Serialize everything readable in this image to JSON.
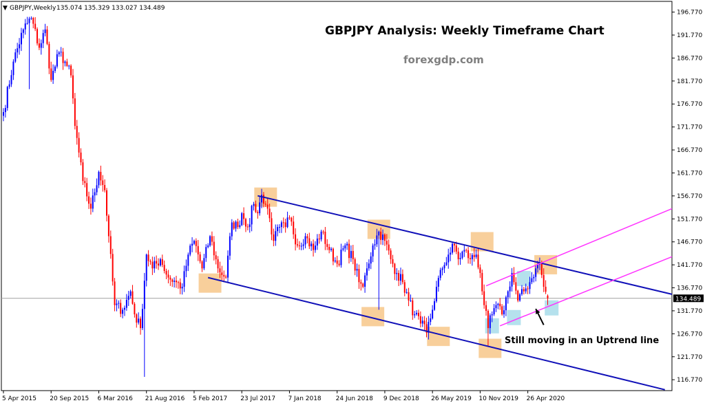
{
  "colors": {
    "background": "#ffffff",
    "frame": "#000000",
    "bull_candle": "#0000ff",
    "bear_candle": "#ff0000",
    "channel_line": "#1010b8",
    "uptrend_line": "#ff33ff",
    "price_line": "#a0a0a0",
    "price_box": "#000000",
    "orange_highlight": "#f7c78a",
    "blue_highlight": "#a8dcea"
  },
  "header": {
    "symbol_arrow": "▼",
    "symbol": "GBPJPY,Weekly",
    "ohlc": "135.074 135.329 133.027 134.489"
  },
  "title": "GBPJPY Analysis: Weekly Timeframe Chart",
  "watermark": "forexgdp.com",
  "annotation": "Still moving in an Uptrend line",
  "current_price_label": "134.489",
  "chart_data": {
    "type": "candlestick",
    "instrument": "GBPJPY",
    "timeframe": "Weekly",
    "last_bar": {
      "open": 135.074,
      "high": 135.329,
      "low": 133.027,
      "close": 134.489
    },
    "ylim": [
      114.4,
      199.1
    ],
    "y_ticks": [
      "196.770",
      "191.770",
      "186.770",
      "181.770",
      "176.770",
      "171.770",
      "166.770",
      "161.770",
      "156.770",
      "151.770",
      "146.770",
      "141.770",
      "136.770",
      "131.770",
      "126.770",
      "121.770",
      "116.770"
    ],
    "x_ticks": [
      "5 Apr 2015",
      "20 Sep 2015",
      "6 Mar 2016",
      "21 Aug 2016",
      "5 Feb 2017",
      "23 Jul 2017",
      "7 Jan 2018",
      "24 Jun 2018",
      "9 Dec 2018",
      "26 May 2019",
      "10 Nov 2019",
      "26 Apr 2020"
    ],
    "x_tick_weeks": [
      0,
      24,
      48,
      72,
      96,
      120,
      144,
      168,
      192,
      216,
      240,
      264
    ],
    "path": [
      [
        0,
        175
      ],
      [
        5,
        186
      ],
      [
        10,
        193
      ],
      [
        14,
        195.5
      ],
      [
        18,
        189
      ],
      [
        21,
        193
      ],
      [
        24,
        182
      ],
      [
        28,
        188
      ],
      [
        31,
        186
      ],
      [
        34,
        183
      ],
      [
        36,
        172
      ],
      [
        40,
        160
      ],
      [
        44,
        154
      ],
      [
        48,
        162
      ],
      [
        51,
        158
      ],
      [
        53,
        148
      ],
      [
        56,
        133
      ],
      [
        60,
        132
      ],
      [
        64,
        136
      ],
      [
        66,
        131
      ],
      [
        69,
        128
      ],
      [
        72,
        144
      ],
      [
        75,
        141
      ],
      [
        79,
        143
      ],
      [
        83,
        139
      ],
      [
        87,
        138
      ],
      [
        90,
        137
      ],
      [
        93,
        144
      ],
      [
        96,
        147
      ],
      [
        100,
        141
      ],
      [
        104,
        148
      ],
      [
        108,
        141
      ],
      [
        112,
        139
      ],
      [
        115,
        151
      ],
      [
        118,
        150
      ],
      [
        120,
        153
      ],
      [
        123,
        150
      ],
      [
        126,
        155
      ],
      [
        128,
        153
      ],
      [
        130,
        157
      ],
      [
        133,
        154
      ],
      [
        136,
        147
      ],
      [
        139,
        150
      ],
      [
        142,
        150
      ],
      [
        144,
        152
      ],
      [
        148,
        146
      ],
      [
        152,
        148
      ],
      [
        156,
        145
      ],
      [
        160,
        149
      ],
      [
        164,
        145
      ],
      [
        168,
        142
      ],
      [
        172,
        146
      ],
      [
        176,
        143
      ],
      [
        179,
        138
      ],
      [
        181,
        137
      ],
      [
        183,
        141
      ],
      [
        186,
        146
      ],
      [
        189,
        149
      ],
      [
        192,
        147
      ],
      [
        195,
        143
      ],
      [
        198,
        140
      ],
      [
        201,
        138
      ],
      [
        204,
        134
      ],
      [
        207,
        131
      ],
      [
        210,
        129
      ],
      [
        213,
        127
      ],
      [
        216,
        132
      ],
      [
        218,
        137
      ],
      [
        221,
        141
      ],
      [
        224,
        144
      ],
      [
        227,
        146
      ],
      [
        229,
        143
      ],
      [
        232,
        145
      ],
      [
        235,
        143
      ],
      [
        238,
        144
      ],
      [
        240,
        140
      ],
      [
        242,
        133
      ],
      [
        244,
        128
      ],
      [
        246,
        131
      ],
      [
        248,
        133
      ],
      [
        251,
        131
      ],
      [
        254,
        136
      ],
      [
        256,
        140
      ],
      [
        259,
        134
      ],
      [
        262,
        136
      ],
      [
        265,
        138
      ],
      [
        268,
        141
      ],
      [
        270,
        142
      ],
      [
        272,
        137
      ],
      [
        274,
        134.5
      ]
    ],
    "wicks": [
      {
        "week": 13,
        "low": 180
      },
      {
        "week": 71,
        "high": 140,
        "low": 117.4
      },
      {
        "week": 189,
        "low": 132
      },
      {
        "week": 213,
        "low": 126
      },
      {
        "week": 244,
        "low": 124
      }
    ],
    "lines": [
      {
        "name": "channel_upper",
        "style": "channel_line",
        "from": [
          128,
          156.8
        ],
        "to": [
          345,
          134.5
        ]
      },
      {
        "name": "channel_lower",
        "style": "channel_line",
        "from": [
          103,
          139
        ],
        "to": [
          333,
          114.6
        ]
      },
      {
        "name": "uptrend_upper",
        "style": "uptrend_line",
        "from": [
          243,
          137.2
        ],
        "to": [
          345,
          155.5
        ]
      },
      {
        "name": "uptrend_lower",
        "style": "uptrend_line",
        "from": [
          250,
          128.5
        ],
        "to": [
          345,
          145
        ]
      }
    ],
    "highlights": [
      {
        "style": "orange_highlight",
        "week": 132,
        "price": 156.5
      },
      {
        "style": "orange_highlight",
        "week": 104,
        "price": 137.8
      },
      {
        "style": "orange_highlight",
        "week": 189,
        "price": 149.5
      },
      {
        "style": "orange_highlight",
        "week": 186,
        "price": 130.5
      },
      {
        "style": "orange_highlight",
        "week": 219,
        "price": 126.2
      },
      {
        "style": "orange_highlight",
        "week": 241,
        "price": 146.8
      },
      {
        "style": "orange_highlight",
        "week": 245,
        "price": 123.6
      },
      {
        "style": "orange_highlight",
        "week": 273,
        "price": 141.8
      },
      {
        "style": "blue_highlight",
        "week": 262,
        "price": 138.8
      },
      {
        "style": "blue_highlight",
        "week": 246,
        "price": 128.5
      },
      {
        "style": "blue_highlight",
        "week": 257,
        "price": 130.3
      },
      {
        "style": "blue_highlight",
        "week": 276,
        "price": 132.4
      }
    ],
    "arrow": {
      "from_week": 272,
      "from_price": 128.7,
      "to_week": 268,
      "to_price": 132.2
    }
  }
}
